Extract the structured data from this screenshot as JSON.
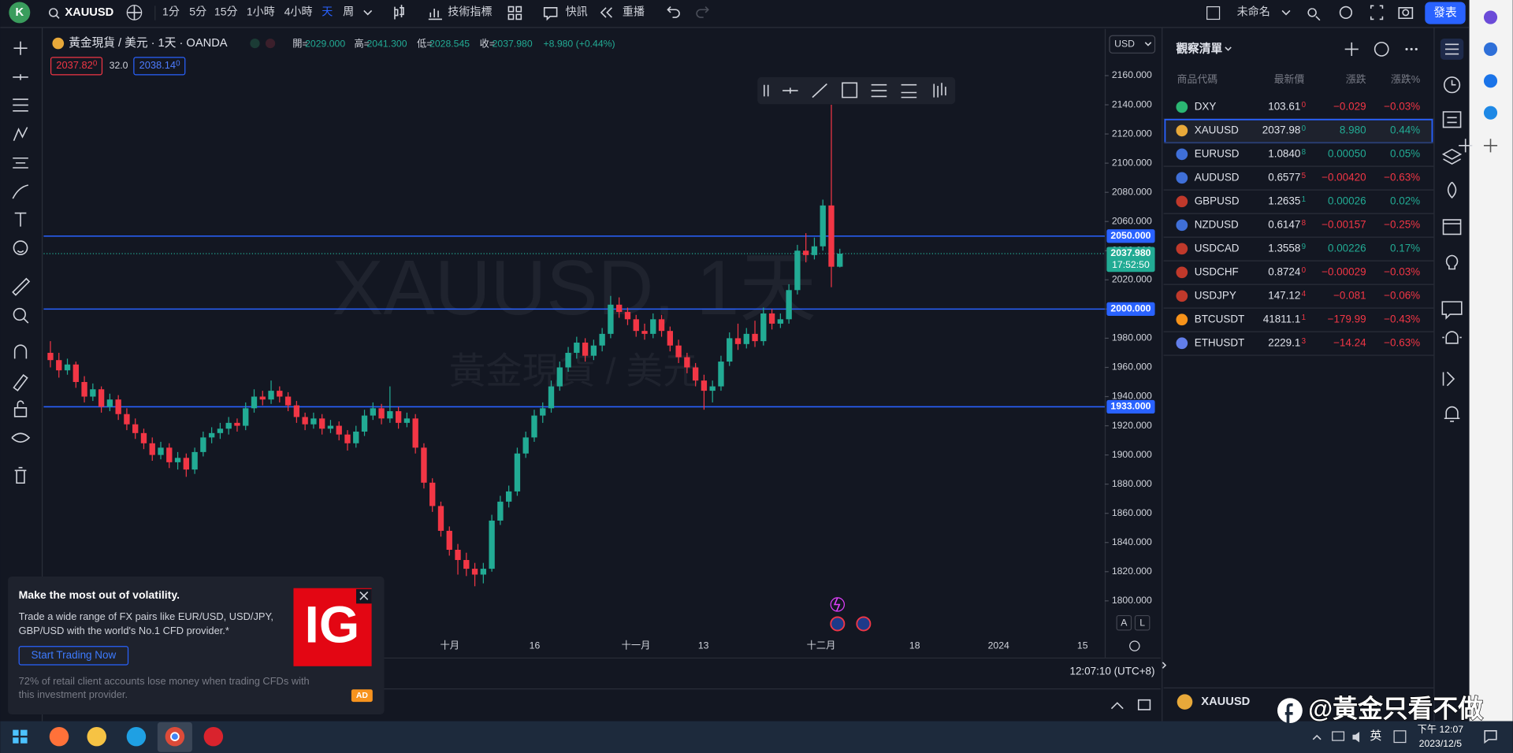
{
  "top_bar": {
    "avatar": "K",
    "symbol": "XAUUSD",
    "intervals": [
      "1分",
      "5分",
      "15分",
      "1小時",
      "4小時",
      "天",
      "周"
    ],
    "indicators": "技術指標",
    "alerts": "快訊",
    "replay": "重播",
    "layout_name": "未命名",
    "publish": "發表"
  },
  "legend": {
    "title": "黃金現貨 / 美元 · 1天 · OANDA",
    "ohlc": [
      {
        "label": "開=",
        "value": "2029.000"
      },
      {
        "label": "高=",
        "value": "2041.300"
      },
      {
        "label": "低=",
        "value": "2028.545"
      },
      {
        "label": "收=",
        "value": "2037.980"
      }
    ],
    "change": "+8.980 (+0.44%)",
    "sell": {
      "price": "2037.82",
      "pip": "0"
    },
    "spread": "32.0",
    "buy": {
      "price": "2038.14",
      "pip": "0"
    }
  },
  "currency": "USD",
  "watermark": {
    "symbol": "XAUUSD, 1天",
    "name": "黃金現貨 / 美元"
  },
  "chart": {
    "type": "candlestick",
    "up_color": "#22ab94",
    "down_color": "#f23645",
    "ylim": [
      1777,
      2192
    ],
    "yticks": [
      {
        "value": 1800,
        "label": "1800.000"
      },
      {
        "value": 1820,
        "label": "1820.000"
      },
      {
        "value": 1840,
        "label": "1840.000"
      },
      {
        "value": 1860,
        "label": "1860.000"
      },
      {
        "value": 1880,
        "label": "1880.000"
      },
      {
        "value": 1900,
        "label": "1900.000"
      },
      {
        "value": 1920,
        "label": "1920.000"
      },
      {
        "value": 1940,
        "label": "1940.000"
      },
      {
        "value": 1960,
        "label": "1960.000"
      },
      {
        "value": 1980,
        "label": "1980.000"
      },
      {
        "value": 2000,
        "label": "2000.000"
      },
      {
        "value": 2020,
        "label": "2020.000"
      },
      {
        "value": 2040,
        "label": "2040.000"
      },
      {
        "value": 2060,
        "label": "2060.000"
      },
      {
        "value": 2080,
        "label": "2080.000"
      },
      {
        "value": 2100,
        "label": "2100.000"
      },
      {
        "value": 2120,
        "label": "2120.000"
      },
      {
        "value": 2140,
        "label": "2140.000"
      },
      {
        "value": 2160,
        "label": "2160.000"
      }
    ],
    "hlines": [
      {
        "value": 2050,
        "label": "2050.000"
      },
      {
        "value": 2000,
        "label": "2000.000"
      },
      {
        "value": 1933,
        "label": "1933.000"
      }
    ],
    "last_price": {
      "value": 2037.98,
      "label": "2037.980",
      "countdown": "17:52:50"
    },
    "candles": [
      [
        1970,
        1978,
        1960,
        1965
      ],
      [
        1965,
        1970,
        1953,
        1958
      ],
      [
        1958,
        1966,
        1955,
        1962
      ],
      [
        1962,
        1964,
        1946,
        1950
      ],
      [
        1950,
        1954,
        1936,
        1940
      ],
      [
        1940,
        1949,
        1937,
        1945
      ],
      [
        1945,
        1947,
        1929,
        1933
      ],
      [
        1933,
        1942,
        1930,
        1938
      ],
      [
        1938,
        1941,
        1924,
        1928
      ],
      [
        1928,
        1932,
        1917,
        1921
      ],
      [
        1921,
        1925,
        1911,
        1915
      ],
      [
        1915,
        1918,
        1904,
        1908
      ],
      [
        1908,
        1912,
        1896,
        1900
      ],
      [
        1900,
        1909,
        1897,
        1905
      ],
      [
        1905,
        1908,
        1891,
        1895
      ],
      [
        1895,
        1902,
        1890,
        1898
      ],
      [
        1898,
        1901,
        1885,
        1890
      ],
      [
        1890,
        1905,
        1887,
        1902
      ],
      [
        1902,
        1916,
        1899,
        1912
      ],
      [
        1912,
        1919,
        1908,
        1915
      ],
      [
        1915,
        1922,
        1911,
        1918
      ],
      [
        1918,
        1926,
        1914,
        1922
      ],
      [
        1922,
        1925,
        1916,
        1920
      ],
      [
        1920,
        1936,
        1917,
        1932
      ],
      [
        1932,
        1945,
        1929,
        1940
      ],
      [
        1940,
        1944,
        1934,
        1938
      ],
      [
        1938,
        1951,
        1935,
        1944
      ],
      [
        1944,
        1947,
        1936,
        1940
      ],
      [
        1940,
        1943,
        1930,
        1934
      ],
      [
        1934,
        1937,
        1922,
        1926
      ],
      [
        1926,
        1929,
        1917,
        1921
      ],
      [
        1921,
        1929,
        1918,
        1925
      ],
      [
        1925,
        1928,
        1914,
        1918
      ],
      [
        1918,
        1924,
        1915,
        1920
      ],
      [
        1920,
        1923,
        1910,
        1914
      ],
      [
        1914,
        1917,
        1903,
        1908
      ],
      [
        1908,
        1920,
        1905,
        1916
      ],
      [
        1916,
        1931,
        1913,
        1927
      ],
      [
        1927,
        1936,
        1924,
        1932
      ],
      [
        1932,
        1935,
        1921,
        1925
      ],
      [
        1925,
        1947,
        1922,
        1930
      ],
      [
        1930,
        1933,
        1918,
        1922
      ],
      [
        1922,
        1929,
        1919,
        1925
      ],
      [
        1925,
        1928,
        1901,
        1905
      ],
      [
        1905,
        1908,
        1877,
        1881
      ],
      [
        1881,
        1884,
        1861,
        1865
      ],
      [
        1865,
        1868,
        1844,
        1848
      ],
      [
        1848,
        1851,
        1831,
        1835
      ],
      [
        1835,
        1839,
        1818,
        1828
      ],
      [
        1828,
        1833,
        1817,
        1822
      ],
      [
        1822,
        1826,
        1810,
        1818
      ],
      [
        1818,
        1826,
        1812,
        1822
      ],
      [
        1822,
        1859,
        1820,
        1855
      ],
      [
        1855,
        1872,
        1852,
        1868
      ],
      [
        1868,
        1879,
        1864,
        1875
      ],
      [
        1875,
        1905,
        1872,
        1901
      ],
      [
        1901,
        1916,
        1898,
        1912
      ],
      [
        1912,
        1931,
        1909,
        1927
      ],
      [
        1927,
        1936,
        1922,
        1932
      ],
      [
        1932,
        1951,
        1929,
        1947
      ],
      [
        1947,
        1964,
        1944,
        1960
      ],
      [
        1960,
        1974,
        1957,
        1970
      ],
      [
        1970,
        1981,
        1966,
        1977
      ],
      [
        1977,
        1980,
        1964,
        1968
      ],
      [
        1968,
        1979,
        1965,
        1975
      ],
      [
        1975,
        1987,
        1971,
        1983
      ],
      [
        1983,
        2009,
        1980,
        2003
      ],
      [
        2003,
        2008,
        1994,
        1998
      ],
      [
        1998,
        2001,
        1989,
        1993
      ],
      [
        1993,
        1996,
        1981,
        1985
      ],
      [
        1985,
        1990,
        1979,
        1983
      ],
      [
        1983,
        1997,
        1980,
        1993
      ],
      [
        1993,
        1996,
        1981,
        1985
      ],
      [
        1985,
        1988,
        1971,
        1975
      ],
      [
        1975,
        1979,
        1963,
        1967
      ],
      [
        1967,
        1970,
        1956,
        1960
      ],
      [
        1960,
        1963,
        1947,
        1951
      ],
      [
        1951,
        1955,
        1931,
        1944
      ],
      [
        1944,
        1951,
        1936,
        1947
      ],
      [
        1947,
        1968,
        1944,
        1964
      ],
      [
        1964,
        1984,
        1961,
        1980
      ],
      [
        1980,
        1990,
        1972,
        1976
      ],
      [
        1976,
        1987,
        1973,
        1983
      ],
      [
        1983,
        1992,
        1974,
        1978
      ],
      [
        1978,
        2001,
        1975,
        1997
      ],
      [
        1997,
        2000,
        1986,
        1990
      ],
      [
        1990,
        1997,
        1987,
        1993
      ],
      [
        1993,
        2017,
        1990,
        2013
      ],
      [
        2013,
        2044,
        2010,
        2040
      ],
      [
        2040,
        2052,
        2032,
        2037
      ],
      [
        2037,
        2049,
        2034,
        2043
      ],
      [
        2043,
        2075,
        2040,
        2071
      ],
      [
        2071,
        2140,
        2015,
        2029
      ],
      [
        2029,
        2041.3,
        2028.545,
        2037.98
      ]
    ]
  },
  "time_axis": {
    "labels": [
      "十月",
      "16",
      "十一月",
      "13",
      "十二月",
      "18",
      "2024",
      "15"
    ],
    "clock": "12:07:10 (UTC+8)"
  },
  "buttons": {
    "auto": "A",
    "log": "L"
  },
  "watchlist": {
    "title": "觀察清單",
    "columns": [
      "商品代碼",
      "最新價",
      "漲跌",
      "漲跌%"
    ],
    "rows": [
      {
        "symbol": "DXY",
        "last": "103.61",
        "pip": "0",
        "change": "−0.029",
        "change_pct": "−0.03%"
      },
      {
        "symbol": "XAUUSD",
        "last": "2037.98",
        "pip": "0",
        "change": "8.980",
        "change_pct": "0.44%"
      },
      {
        "symbol": "EURUSD",
        "last": "1.0840",
        "pip": "8",
        "change": "0.00050",
        "change_pct": "0.05%"
      },
      {
        "symbol": "AUDUSD",
        "last": "0.6577",
        "pip": "5",
        "change": "−0.00420",
        "change_pct": "−0.63%"
      },
      {
        "symbol": "GBPUSD",
        "last": "1.2635",
        "pip": "1",
        "change": "0.00026",
        "change_pct": "0.02%"
      },
      {
        "symbol": "NZDUSD",
        "last": "0.6147",
        "pip": "8",
        "change": "−0.00157",
        "change_pct": "−0.25%"
      },
      {
        "symbol": "USDCAD",
        "last": "1.3558",
        "pip": "9",
        "change": "0.00226",
        "change_pct": "0.17%"
      },
      {
        "symbol": "USDCHF",
        "last": "0.8724",
        "pip": "0",
        "change": "−0.00029",
        "change_pct": "−0.03%"
      },
      {
        "symbol": "USDJPY",
        "last": "147.12",
        "pip": "4",
        "change": "−0.081",
        "change_pct": "−0.06%"
      },
      {
        "symbol": "BTCUSDT",
        "last": "41811.1",
        "pip": "1",
        "change": "−179.99",
        "change_pct": "−0.43%"
      },
      {
        "symbol": "ETHUSDT",
        "last": "2229.1",
        "pip": "3",
        "change": "−14.24",
        "change_pct": "−0.63%"
      }
    ],
    "detail_symbol": "XAUUSD"
  },
  "ad": {
    "title": "Make the most out of volatility.",
    "body": [
      "Trade a wide range of FX pairs like EUR/USD, USD/JPY,",
      "GBP/USD with the world's No.1 CFD provider.*"
    ],
    "button": "Start Trading Now",
    "disclaimer": [
      "72% of retail client accounts lose money when trading CFDs with",
      "this investment provider."
    ],
    "badge": "AD",
    "logo": "IG"
  },
  "taskbar": {
    "ime": "英",
    "time": "下午 12:07",
    "date": "2023/12/5"
  },
  "overlay_watermark": "@黃金只看不做"
}
